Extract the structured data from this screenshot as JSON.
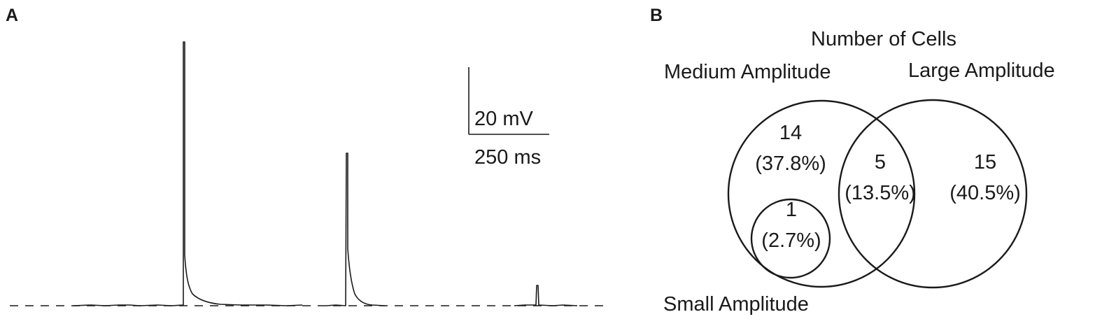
{
  "panel_a": {
    "label": "A",
    "scale_bar": {
      "voltage_label": "20 mV",
      "time_label": "250 ms"
    },
    "events": [
      {
        "name": "large-amplitude-event",
        "relative_amplitude": 1.0
      },
      {
        "name": "medium-amplitude-event",
        "relative_amplitude": 0.58
      },
      {
        "name": "small-amplitude-event",
        "relative_amplitude": 0.08
      }
    ]
  },
  "panel_b": {
    "label": "B",
    "title": "Number of Cells",
    "sets": {
      "medium": "Medium Amplitude",
      "large": "Large Amplitude",
      "small": "Small Amplitude"
    },
    "regions": {
      "medium_only": {
        "count": "14",
        "percent": "(37.8%)"
      },
      "medium_large": {
        "count": "5",
        "percent": "(13.5%)"
      },
      "large_only": {
        "count": "15",
        "percent": "(40.5%)"
      },
      "small_in_medium": {
        "count": "1",
        "percent": "(2.7%)"
      }
    }
  }
}
